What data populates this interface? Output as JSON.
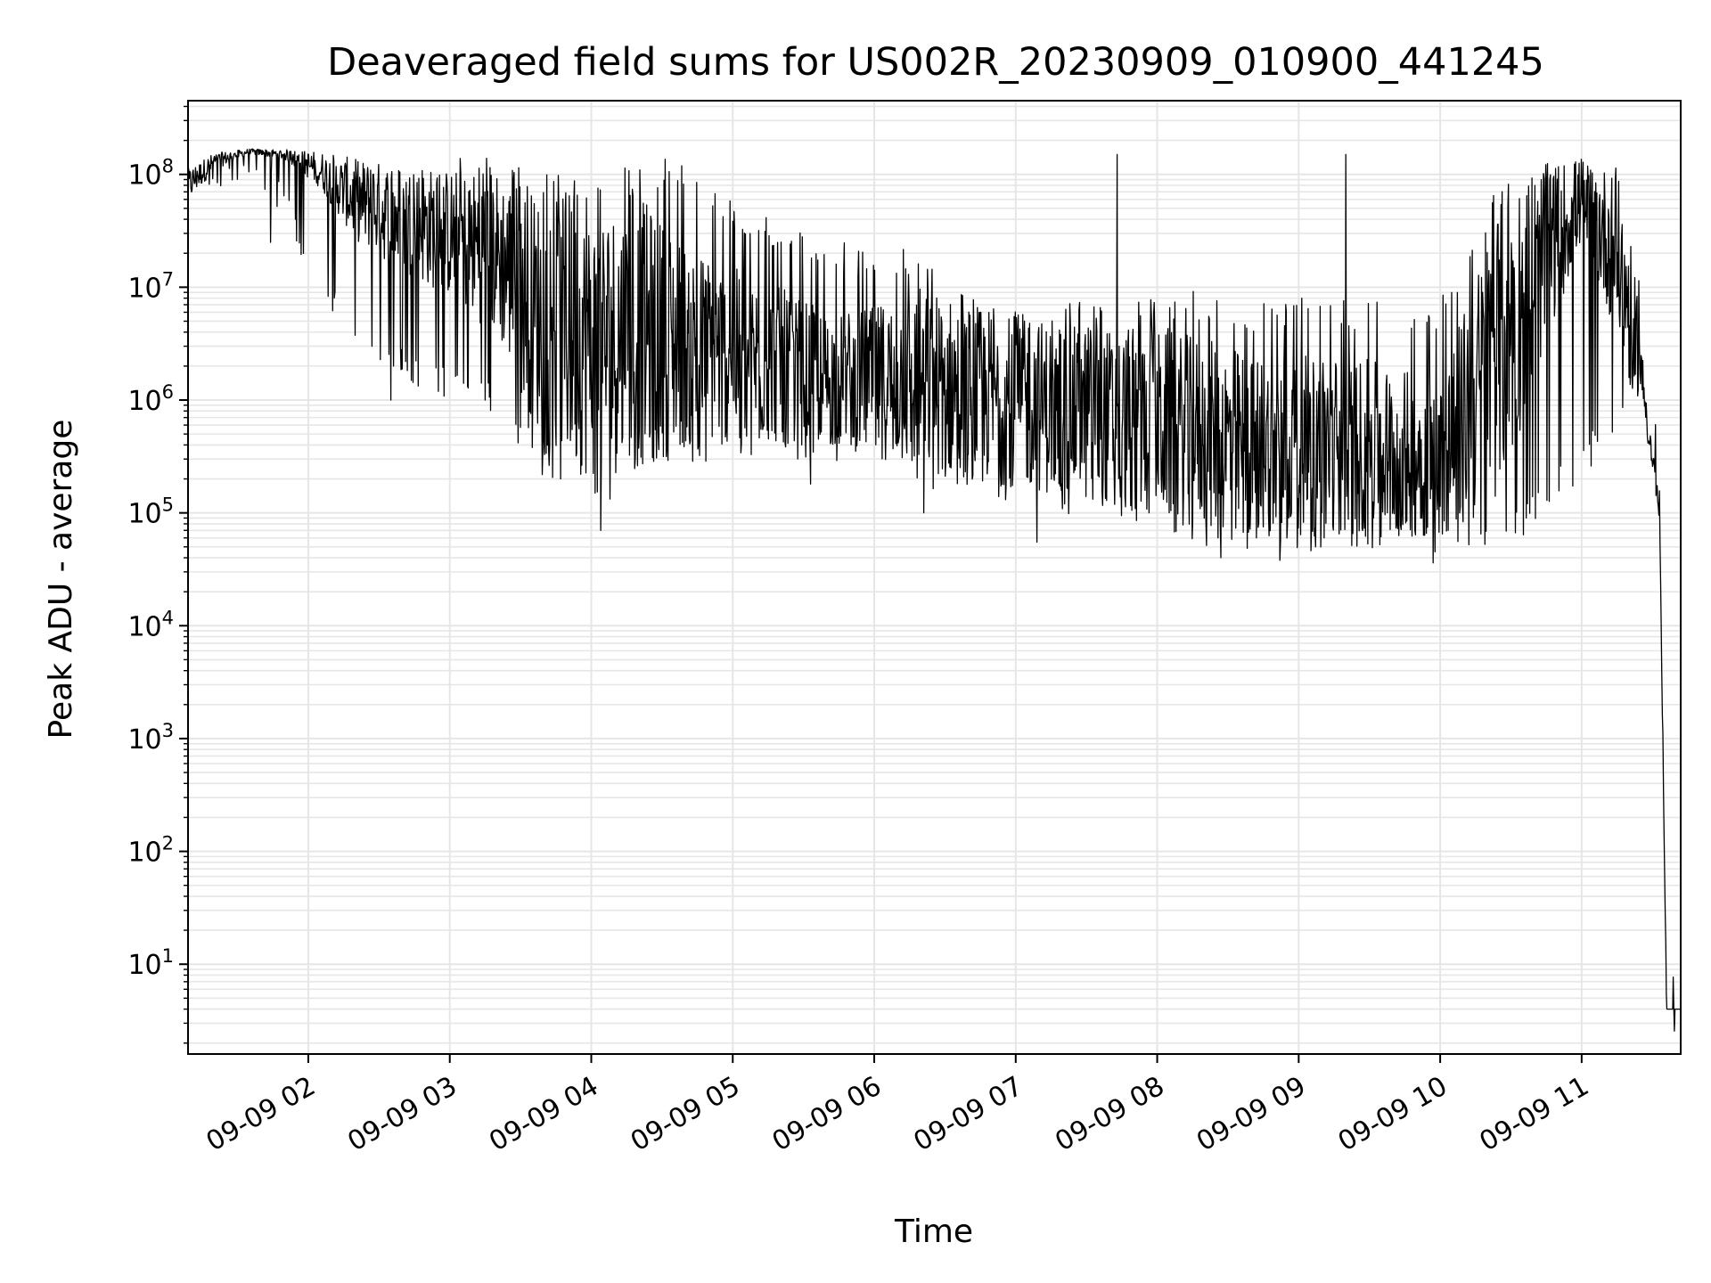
{
  "chart_data": {
    "type": "line",
    "title": "Deaveraged field sums for US002R_20230909_010900_441245",
    "xlabel": "Time",
    "ylabel": "Peak ADU - average",
    "yscale": "log",
    "ylim": [
      1.6,
      450000000
    ],
    "xlim": [
      "2023-09-09 01:09",
      "2023-09-09 11:42"
    ],
    "grid": true,
    "x_ticks": [
      "09-09 02",
      "09-09 03",
      "09-09 04",
      "09-09 05",
      "09-09 06",
      "09-09 07",
      "09-09 08",
      "09-09 09",
      "09-09 10",
      "09-09 11"
    ],
    "y_ticks": [
      {
        "base": "10",
        "exp": "1"
      },
      {
        "base": "10",
        "exp": "2"
      },
      {
        "base": "10",
        "exp": "3"
      },
      {
        "base": "10",
        "exp": "4"
      },
      {
        "base": "10",
        "exp": "5"
      },
      {
        "base": "10",
        "exp": "6"
      },
      {
        "base": "10",
        "exp": "7"
      },
      {
        "base": "10",
        "exp": "8"
      }
    ],
    "line_color": "#000000",
    "grid_color": "#e6e6e6",
    "series": [
      {
        "envelope": [
          {
            "x": "2023-09-09 01:09",
            "median": 80000000,
            "low": 40000000,
            "high": 120000000
          },
          {
            "x": "2023-09-09 01:20",
            "median": 130000000,
            "low": 60000000,
            "high": 160000000
          },
          {
            "x": "2023-09-09 01:35",
            "median": 160000000,
            "low": 80000000,
            "high": 170000000
          },
          {
            "x": "2023-09-09 01:50",
            "median": 150000000,
            "low": 40000000,
            "high": 170000000
          },
          {
            "x": "2023-09-09 02:05",
            "median": 110000000,
            "low": 8000000,
            "high": 170000000
          },
          {
            "x": "2023-09-09 02:20",
            "median": 60000000,
            "low": 3000000,
            "high": 160000000
          },
          {
            "x": "2023-09-09 02:40",
            "median": 40000000,
            "low": 1500000,
            "high": 150000000
          },
          {
            "x": "2023-09-09 03:00",
            "median": 30000000,
            "low": 1000000,
            "high": 140000000
          },
          {
            "x": "2023-09-09 03:20",
            "median": 20000000,
            "low": 700000,
            "high": 150000000
          },
          {
            "x": "2023-09-09 03:40",
            "median": 5000000,
            "low": 200000,
            "high": 100000000
          },
          {
            "x": "2023-09-09 04:00",
            "median": 3000000,
            "low": 120000,
            "high": 100000000
          },
          {
            "x": "2023-09-09 04:20",
            "median": 4000000,
            "low": 150000,
            "high": 120000000
          },
          {
            "x": "2023-09-09 04:40",
            "median": 3000000,
            "low": 250000,
            "high": 150000000
          },
          {
            "x": "2023-09-09 05:00",
            "median": 2500000,
            "low": 300000,
            "high": 60000000
          },
          {
            "x": "2023-09-09 05:20",
            "median": 2000000,
            "low": 300000,
            "high": 40000000
          },
          {
            "x": "2023-09-09 05:40",
            "median": 1500000,
            "low": 300000,
            "high": 30000000
          },
          {
            "x": "2023-09-09 06:00",
            "median": 1500000,
            "low": 250000,
            "high": 20000000
          },
          {
            "x": "2023-09-09 06:20",
            "median": 1500000,
            "low": 150000,
            "high": 25000000
          },
          {
            "x": "2023-09-09 06:40",
            "median": 1200000,
            "low": 150000,
            "high": 15000000
          },
          {
            "x": "2023-09-09 07:00",
            "median": 1000000,
            "low": 120000,
            "high": 8000000
          },
          {
            "x": "2023-09-09 07:20",
            "median": 800000,
            "low": 100000,
            "high": 8000000
          },
          {
            "x": "2023-09-09 07:40",
            "median": 700000,
            "low": 80000,
            "high": 8000000
          },
          {
            "x": "2023-09-09 08:00",
            "median": 600000,
            "low": 60000,
            "high": 8000000
          },
          {
            "x": "2023-09-09 08:20",
            "median": 500000,
            "low": 50000,
            "high": 10000000
          },
          {
            "x": "2023-09-09 08:40",
            "median": 400000,
            "low": 45000,
            "high": 8000000
          },
          {
            "x": "2023-09-09 09:00",
            "median": 400000,
            "low": 45000,
            "high": 8000000
          },
          {
            "x": "2023-09-09 09:20",
            "median": 400000,
            "low": 45000,
            "high": 8000000
          },
          {
            "x": "2023-09-09 09:40",
            "median": 350000,
            "low": 45000,
            "high": 8000000
          },
          {
            "x": "2023-09-09 10:00",
            "median": 300000,
            "low": 45000,
            "high": 8000000
          },
          {
            "x": "2023-09-09 10:15",
            "median": 1000000,
            "low": 50000,
            "high": 30000000
          },
          {
            "x": "2023-09-09 10:30",
            "median": 5000000,
            "low": 50000,
            "high": 150000000
          },
          {
            "x": "2023-09-09 10:45",
            "median": 20000000,
            "low": 100000,
            "high": 170000000
          },
          {
            "x": "2023-09-09 11:00",
            "median": 60000000,
            "low": 200000,
            "high": 170000000
          },
          {
            "x": "2023-09-09 11:15",
            "median": 20000000,
            "low": 500000,
            "high": 140000000
          },
          {
            "x": "2023-09-09 11:25",
            "median": 2000000,
            "low": 1000000,
            "high": 10000000
          },
          {
            "x": "2023-09-09 11:30",
            "median": 300000,
            "low": 200000,
            "high": 3000000
          },
          {
            "x": "2023-09-09 11:33",
            "median": 100000,
            "low": 80000,
            "high": 150000
          },
          {
            "x": "2023-09-09 11:36",
            "median": 4,
            "low": 4,
            "high": 4
          },
          {
            "x": "2023-09-09 11:42",
            "median": 4,
            "low": 4,
            "high": 4
          }
        ],
        "spikes": [
          {
            "x": "2023-09-09 01:44",
            "y": 25000000
          },
          {
            "x": "2023-09-09 02:11",
            "y": 8000000
          },
          {
            "x": "2023-09-09 02:27",
            "y": 3000000
          },
          {
            "x": "2023-09-09 02:35",
            "y": 1000000
          },
          {
            "x": "2023-09-09 03:15",
            "y": 1000000
          },
          {
            "x": "2023-09-09 03:35",
            "y": 380000
          },
          {
            "x": "2023-09-09 03:47",
            "y": 200000
          },
          {
            "x": "2023-09-09 04:04",
            "y": 70000
          },
          {
            "x": "2023-09-09 05:33",
            "y": 180000
          },
          {
            "x": "2023-09-09 06:21",
            "y": 100000
          },
          {
            "x": "2023-09-09 07:09",
            "y": 55000
          },
          {
            "x": "2023-09-09 08:27",
            "y": 40000
          },
          {
            "x": "2023-09-09 08:52",
            "y": 38000
          },
          {
            "x": "2023-09-09 09:57",
            "y": 36000
          },
          {
            "x": "2023-09-09 09:20",
            "y": 150000000
          },
          {
            "x": "2023-09-09 07:43",
            "y": 150000000
          }
        ]
      }
    ]
  }
}
